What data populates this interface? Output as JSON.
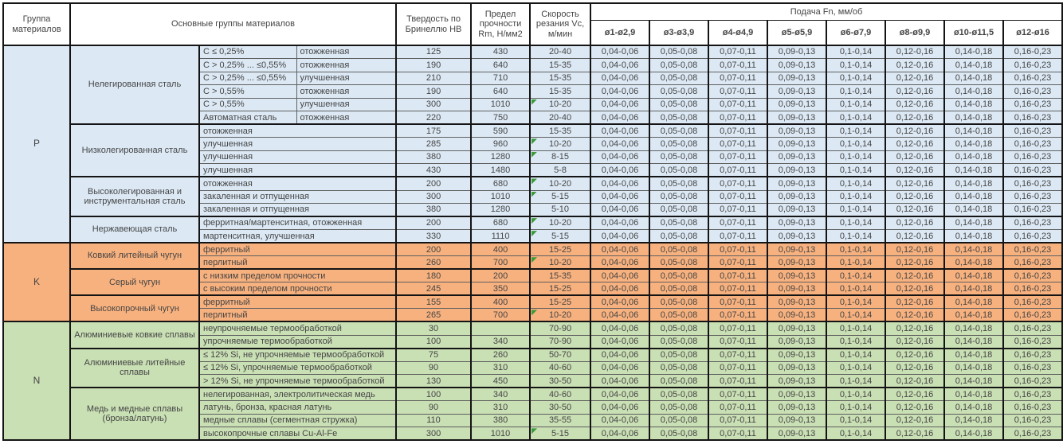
{
  "header": {
    "col_group": "Группа материалов",
    "col_materials": "Основные группы материалов",
    "col_hardness": "Твердость по Бринеллю НВ",
    "col_strength": "Предел прочности Rm, Н/мм2",
    "col_speed": "Скорость резания Vc, м/мин",
    "col_feed": "Подача Fn, мм/об",
    "diameters": [
      "ø1-ø2,9",
      "ø3-ø3,9",
      "ø4-ø4,9",
      "ø5-ø5,9",
      "ø6-ø7,9",
      "ø8-ø9,9",
      "ø10-ø11,5",
      "ø12-ø16"
    ]
  },
  "feed_values": [
    "0,04-0,06",
    "0,05-0,08",
    "0,07-0,11",
    "0,09-0,13",
    "0,1-0,14",
    "0,12-0,16",
    "0,14-0,18",
    "0,16-0,23"
  ],
  "colors": {
    "group_p": "#dce9f5",
    "group_k": "#f7b17e",
    "group_n": "#c9dfb4",
    "flag_triangle": "#3a9a3a"
  },
  "groups": [
    {
      "code": "P",
      "color": "#dce9f5",
      "subgroups": [
        {
          "name": "Нелегированная сталь",
          "rows": [
            {
              "desc1": "C ≤ 0,25%",
              "desc2": "отожженная",
              "hb": "125",
              "rm": "430",
              "vc": "20-40"
            },
            {
              "desc1": "C > 0,25% ... ≤0,55%",
              "desc2": "отожженная",
              "hb": "190",
              "rm": "640",
              "vc": "15-35"
            },
            {
              "desc1": "C > 0,25% ... ≤0,55%",
              "desc2": "улучшенная",
              "hb": "210",
              "rm": "710",
              "vc": "15-35"
            },
            {
              "desc1": "C > 0,55%",
              "desc2": "отожженная",
              "hb": "190",
              "rm": "640",
              "vc": "15-35"
            },
            {
              "desc1": "C > 0,55%",
              "desc2": "улучшенная",
              "hb": "300",
              "rm": "1010",
              "vc": "10-20",
              "flag": true
            },
            {
              "desc1": "Автоматная сталь",
              "desc2": "отожженная",
              "hb": "220",
              "rm": "750",
              "vc": "20-40"
            }
          ]
        },
        {
          "name": "Низколегированная сталь",
          "rows": [
            {
              "desc": "отожженная",
              "hb": "175",
              "rm": "590",
              "vc": "15-35"
            },
            {
              "desc": "улучшенная",
              "hb": "285",
              "rm": "960",
              "vc": "10-20",
              "flag": true
            },
            {
              "desc": "улучшенная",
              "hb": "380",
              "rm": "1280",
              "vc": "8-15",
              "flag": true
            },
            {
              "desc": "улучшенная",
              "hb": "430",
              "rm": "1480",
              "vc": "5-8"
            }
          ]
        },
        {
          "name": "Высоколегированная и инструментальная сталь",
          "rows": [
            {
              "desc": "отожженная",
              "hb": "200",
              "rm": "680",
              "vc": "10-20",
              "flag": true
            },
            {
              "desc": "закаленная и отпущенная",
              "hb": "300",
              "rm": "1010",
              "vc": "5-15",
              "flag": true
            },
            {
              "desc": "закаленная и отпущенная",
              "hb": "380",
              "rm": "1280",
              "vc": "5-10"
            }
          ]
        },
        {
          "name": "Нержавеющая сталь",
          "rows": [
            {
              "desc": "ферритная/мартенситная, отожженная",
              "hb": "200",
              "rm": "680",
              "vc": "10-20",
              "flag": true
            },
            {
              "desc": "мартенситная, улучшенная",
              "hb": "330",
              "rm": "1110",
              "vc": "5-15",
              "flag": true
            }
          ]
        }
      ]
    },
    {
      "code": "K",
      "color": "#f7b17e",
      "subgroups": [
        {
          "name": "Ковкий литейный чугун",
          "rows": [
            {
              "desc": "ферритный",
              "hb": "200",
              "rm": "400",
              "vc": "15-25"
            },
            {
              "desc": "перлитный",
              "hb": "260",
              "rm": "700",
              "vc": "10-20",
              "flag": true
            }
          ]
        },
        {
          "name": "Серый чугун",
          "rows": [
            {
              "desc": "с низким пределом прочности",
              "hb": "180",
              "rm": "200",
              "vc": "15-35"
            },
            {
              "desc": "с высоким пределом прочности",
              "hb": "245",
              "rm": "350",
              "vc": "15-25"
            }
          ]
        },
        {
          "name": "Высокопрочный чугун",
          "rows": [
            {
              "desc": "ферритный",
              "hb": "155",
              "rm": "400",
              "vc": "15-25"
            },
            {
              "desc": "перлитный",
              "hb": "265",
              "rm": "700",
              "vc": "10-20",
              "flag": true
            }
          ]
        }
      ]
    },
    {
      "code": "N",
      "color": "#c9dfb4",
      "subgroups": [
        {
          "name": "Алюминиевые ковкие сплавы",
          "rows": [
            {
              "desc": "неупрочняемые термообработкой",
              "hb": "30",
              "rm": "",
              "vc": "70-90"
            },
            {
              "desc": "упрочняемые термообработкой",
              "hb": "100",
              "rm": "340",
              "vc": "70-90"
            }
          ]
        },
        {
          "name": "Алюминиевые литейные сплавы",
          "rows": [
            {
              "desc": "≤ 12% Si, не упрочняемые термообработкой",
              "hb": "75",
              "rm": "260",
              "vc": "50-70"
            },
            {
              "desc": "≤ 12% Si, упрочняемые термообработкой",
              "hb": "90",
              "rm": "310",
              "vc": "40-60"
            },
            {
              "desc": "> 12% Si, не упрочняемые термообработкой",
              "hb": "130",
              "rm": "450",
              "vc": "30-50"
            }
          ]
        },
        {
          "name": "Медь и медные сплавы (бронза/латунь)",
          "rows": [
            {
              "desc": "нелегированная, электролитическая медь",
              "hb": "100",
              "rm": "340",
              "vc": "40-60"
            },
            {
              "desc": "латунь, бронза, красная латунь",
              "hb": "90",
              "rm": "310",
              "vc": "30-50"
            },
            {
              "desc": "медные сплавы (сегментная стружка)",
              "hb": "110",
              "rm": "380",
              "vc": "35-55"
            },
            {
              "desc": "высокопрочные сплавы Cu-Al-Fe",
              "hb": "300",
              "rm": "1010",
              "vc": "5-15",
              "flag": true
            }
          ]
        }
      ]
    }
  ]
}
